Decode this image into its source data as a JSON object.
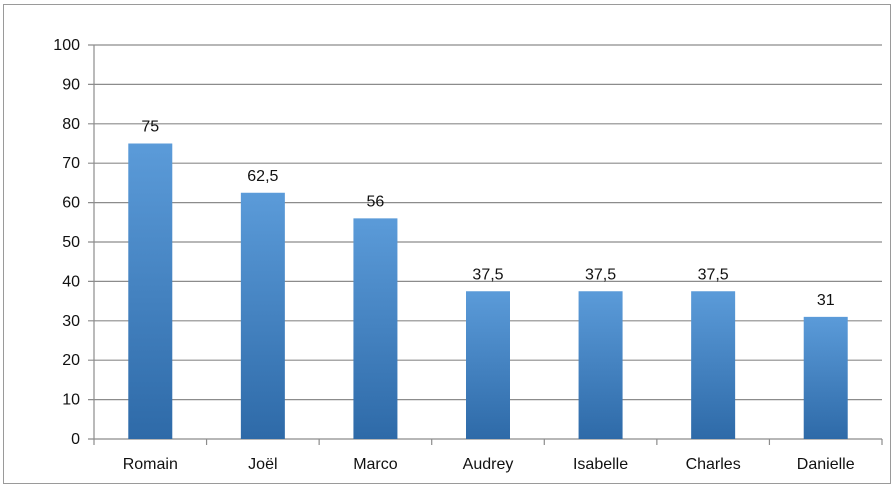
{
  "chart_data": {
    "type": "bar",
    "categories": [
      "Romain",
      "Joël",
      "Marco",
      "Audrey",
      "Isabelle",
      "Charles",
      "Danielle"
    ],
    "values": [
      75,
      62.5,
      56,
      37.5,
      37.5,
      37.5,
      31
    ],
    "data_labels": [
      "75",
      "62,5",
      "56",
      "37,5",
      "37,5",
      "37,5",
      "31"
    ],
    "title": "",
    "xlabel": "",
    "ylabel": "",
    "ylim": [
      0,
      100
    ],
    "yticks": [
      0,
      10,
      20,
      30,
      40,
      50,
      60,
      70,
      80,
      90,
      100
    ],
    "grid": true,
    "legend": "none",
    "colors": {
      "bar_top": "#5b9bd9",
      "bar_bottom": "#2e6aa8",
      "grid": "#8c8c8c",
      "axis": "#8c8c8c"
    }
  }
}
